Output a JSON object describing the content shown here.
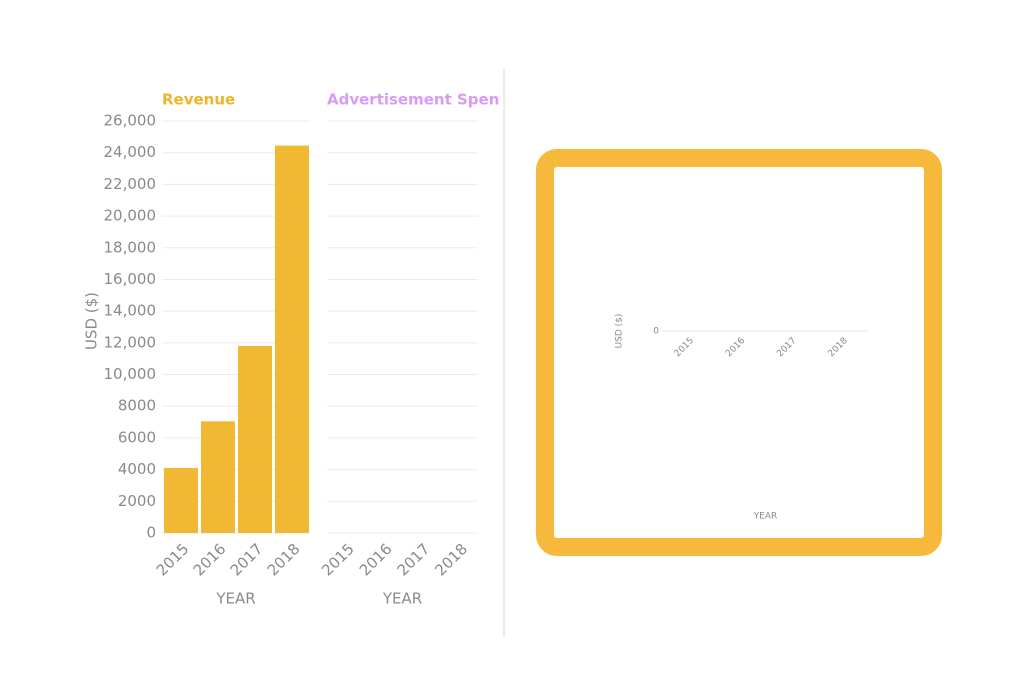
{
  "chart_data": [
    {
      "type": "bar",
      "title": "Revenue",
      "title_color": "#f0b429",
      "color": "#f0b429",
      "y_label": "USD ($)",
      "x_label": "YEAR",
      "categories": [
        "2015",
        "2016",
        "2017",
        "2018"
      ],
      "values": [
        4100,
        7050,
        11800,
        24450
      ],
      "ylim": [
        0,
        26000
      ],
      "yticks": [
        0,
        2000,
        4000,
        6000,
        8000,
        {
          "value": 10000,
          "label": "10,000"
        },
        {
          "value": 12000,
          "label": "12,000"
        },
        {
          "value": 14000,
          "label": "14,000"
        },
        {
          "value": 16000,
          "label": "16,000"
        },
        {
          "value": 18000,
          "label": "18,000"
        },
        {
          "value": 20000,
          "label": "20,000"
        },
        {
          "value": 22000,
          "label": "22,000"
        },
        {
          "value": 24000,
          "label": "24,000"
        },
        {
          "value": 26000,
          "label": "26,000"
        }
      ],
      "grid": true
    },
    {
      "type": "bar",
      "title": "Advertisement Spen",
      "title_color": "#d89cf6",
      "x_label": "YEAR",
      "categories": [
        "2015",
        "2016",
        "2017",
        "2018"
      ],
      "grid": true
    },
    {
      "type": "bar",
      "y_label": "USD ($)",
      "x_label": "YEAR",
      "categories": [
        "2015",
        "2016",
        "2017",
        "2018"
      ],
      "yticks": [
        0
      ]
    }
  ]
}
